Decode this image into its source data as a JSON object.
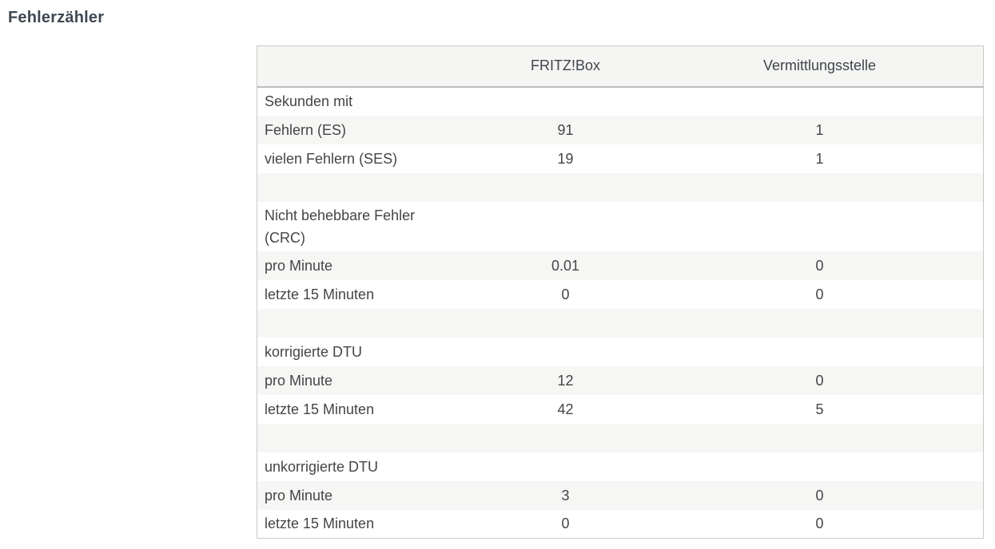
{
  "page": {
    "title": "Fehlerzähler"
  },
  "colors": {
    "title": "#3e4852",
    "text": "#454545",
    "table_border": "#c9c9c9",
    "header_background": "#f5f5f3",
    "row_stripe_background": "#f6f6f5"
  },
  "table": {
    "columns": [
      "",
      "FRITZ!Box",
      "Vermittlungsstelle"
    ],
    "rows": [
      {
        "type": "section",
        "label": "Sekunden mit",
        "fritzbox": "",
        "vermittlungsstelle": ""
      },
      {
        "type": "data",
        "label": "Fehlern (ES)",
        "fritzbox": "91",
        "vermittlungsstelle": "1"
      },
      {
        "type": "data",
        "label": "vielen Fehlern (SES)",
        "fritzbox": "19",
        "vermittlungsstelle": "1"
      },
      {
        "type": "spacer",
        "label": "",
        "fritzbox": "",
        "vermittlungsstelle": ""
      },
      {
        "type": "section",
        "label": "Nicht behebbare Fehler (CRC)",
        "fritzbox": "",
        "vermittlungsstelle": ""
      },
      {
        "type": "data",
        "label": "pro Minute",
        "fritzbox": "0.01",
        "vermittlungsstelle": "0"
      },
      {
        "type": "data",
        "label": "letzte 15 Minuten",
        "fritzbox": "0",
        "vermittlungsstelle": "0"
      },
      {
        "type": "spacer",
        "label": "",
        "fritzbox": "",
        "vermittlungsstelle": ""
      },
      {
        "type": "section",
        "label": "korrigierte DTU",
        "fritzbox": "",
        "vermittlungsstelle": ""
      },
      {
        "type": "data",
        "label": "pro Minute",
        "fritzbox": "12",
        "vermittlungsstelle": "0"
      },
      {
        "type": "data",
        "label": "letzte 15 Minuten",
        "fritzbox": "42",
        "vermittlungsstelle": "5"
      },
      {
        "type": "spacer",
        "label": "",
        "fritzbox": "",
        "vermittlungsstelle": ""
      },
      {
        "type": "section",
        "label": "unkorrigierte DTU",
        "fritzbox": "",
        "vermittlungsstelle": ""
      },
      {
        "type": "data",
        "label": "pro Minute",
        "fritzbox": "3",
        "vermittlungsstelle": "0"
      },
      {
        "type": "data",
        "label": "letzte 15 Minuten",
        "fritzbox": "0",
        "vermittlungsstelle": "0"
      }
    ]
  }
}
